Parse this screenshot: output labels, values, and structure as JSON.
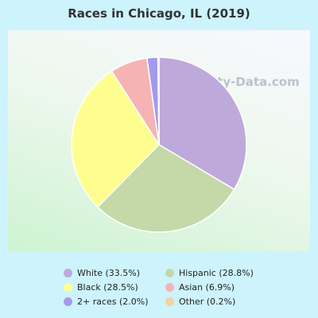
{
  "chart_data": {
    "type": "pie",
    "title": "Races in Chicago, IL (2019)",
    "slices": [
      {
        "label": "White (33.5%)",
        "value": 33.5,
        "color": "#bea9db"
      },
      {
        "label": "Hispanic (28.8%)",
        "value": 28.8,
        "color": "#c5d8a8"
      },
      {
        "label": "Black (28.5%)",
        "value": 28.5,
        "color": "#fefe90"
      },
      {
        "label": "Asian (6.9%)",
        "value": 6.9,
        "color": "#f6b3b3"
      },
      {
        "label": "2+ races (2.0%)",
        "value": 2.0,
        "color": "#a39be9"
      },
      {
        "label": "Other (0.2%)",
        "value": 0.2,
        "color": "#f5d2a6"
      }
    ],
    "legend_order": [
      0,
      1,
      2,
      3,
      4,
      5
    ],
    "legend_placement": "bottom"
  },
  "watermark": "City-Data.com"
}
